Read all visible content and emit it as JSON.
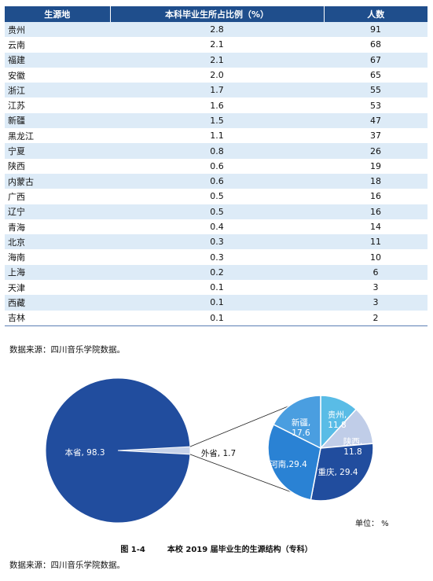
{
  "table": {
    "headers": [
      "生源地",
      "本科毕业生所占比例（%）",
      "人数"
    ],
    "rows": [
      [
        "贵州",
        "2.8",
        "91"
      ],
      [
        "云南",
        "2.1",
        "68"
      ],
      [
        "福建",
        "2.1",
        "67"
      ],
      [
        "安徽",
        "2.0",
        "65"
      ],
      [
        "浙江",
        "1.7",
        "55"
      ],
      [
        "江苏",
        "1.6",
        "53"
      ],
      [
        "新疆",
        "1.5",
        "47"
      ],
      [
        "黑龙江",
        "1.1",
        "37"
      ],
      [
        "宁夏",
        "0.8",
        "26"
      ],
      [
        "陕西",
        "0.6",
        "19"
      ],
      [
        "内蒙古",
        "0.6",
        "18"
      ],
      [
        "广西",
        "0.5",
        "16"
      ],
      [
        "辽宁",
        "0.5",
        "16"
      ],
      [
        "青海",
        "0.4",
        "14"
      ],
      [
        "北京",
        "0.3",
        "11"
      ],
      [
        "海南",
        "0.3",
        "10"
      ],
      [
        "上海",
        "0.2",
        "6"
      ],
      [
        "天津",
        "0.1",
        "3"
      ],
      [
        "西藏",
        "0.1",
        "3"
      ],
      [
        "吉林",
        "0.1",
        "2"
      ]
    ]
  },
  "source_note_1": "数据来源：四川音乐学院数据。",
  "source_note_2": "数据来源：四川音乐学院数据。",
  "caption": {
    "figure": "图 1-4",
    "title": "本校 2019 届毕业生的生源结构（专科）"
  },
  "unit_label": "单位：  %",
  "chart_data": [
    {
      "type": "pie",
      "categories": [
        "本省",
        "外省"
      ],
      "values": [
        98.3,
        1.7
      ],
      "data_labels": [
        "本省, 98.3",
        "外省, 1.7"
      ],
      "colors": [
        "#214d9e",
        "#c7d3ea"
      ]
    },
    {
      "type": "pie",
      "categories": [
        "贵州",
        "陕西",
        "重庆",
        "河南",
        "新疆"
      ],
      "values": [
        11.8,
        11.8,
        29.4,
        29.4,
        17.6
      ],
      "data_labels": [
        "贵州,\n11.8",
        "陕西,\n11.8",
        "重庆, 29.4",
        "河南,29.4",
        "新疆,\n17.6"
      ],
      "colors": [
        "#59bce6",
        "#c0cde8",
        "#214d9e",
        "#2a82d4",
        "#4a9ee0"
      ]
    }
  ]
}
